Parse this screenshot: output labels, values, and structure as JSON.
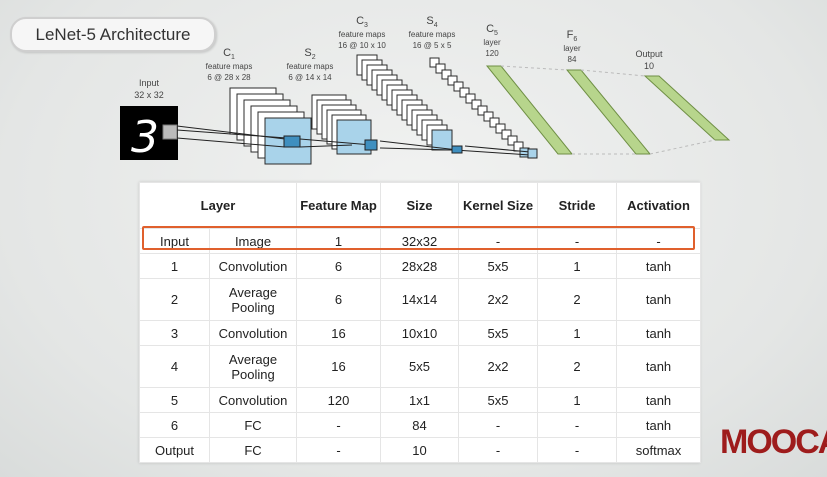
{
  "title": "LeNet-5 Architecture",
  "diagram": {
    "input": {
      "name": "Input",
      "dims": "32 x 32",
      "digit": "3"
    },
    "c1": {
      "name": "C",
      "sub": "1",
      "line1": "feature maps",
      "line2": "6 @ 28 x 28"
    },
    "s2": {
      "name": "S",
      "sub": "2",
      "line1": "feature maps",
      "line2": "6 @ 14 x 14"
    },
    "c3": {
      "name": "C",
      "sub": "3",
      "line1": "feature maps",
      "line2": "16 @ 10 x 10"
    },
    "s4": {
      "name": "S",
      "sub": "4",
      "line1": "feature maps",
      "line2": "16 @ 5 x 5"
    },
    "c5": {
      "name": "C",
      "sub": "5",
      "line1": "layer",
      "line2": "120"
    },
    "f6": {
      "name": "F",
      "sub": "6",
      "line1": "layer",
      "line2": "84"
    },
    "output": {
      "line1": "Output",
      "line2": "10"
    },
    "colors": {
      "map_fill": "#a9d3ea",
      "map_stroke": "#2b2b2b",
      "fc_fill": "#b7d58c",
      "fc_stroke": "#6f8f45"
    }
  },
  "table": {
    "headers": {
      "layer": "Layer",
      "feature_map": "Feature Map",
      "size": "Size",
      "kernel_size": "Kernel Size",
      "stride": "Stride",
      "activation": "Activation"
    },
    "rows": [
      {
        "num": "Input",
        "type": "Image",
        "feature_map": "1",
        "size": "32x32",
        "kernel": "-",
        "stride": "-",
        "activation": "-"
      },
      {
        "num": "1",
        "type": "Convolution",
        "feature_map": "6",
        "size": "28x28",
        "kernel": "5x5",
        "stride": "1",
        "activation": "tanh"
      },
      {
        "num": "2",
        "type": "Average Pooling",
        "feature_map": "6",
        "size": "14x14",
        "kernel": "2x2",
        "stride": "2",
        "activation": "tanh"
      },
      {
        "num": "3",
        "type": "Convolution",
        "feature_map": "16",
        "size": "10x10",
        "kernel": "5x5",
        "stride": "1",
        "activation": "tanh"
      },
      {
        "num": "4",
        "type": "Average Pooling",
        "feature_map": "16",
        "size": "5x5",
        "kernel": "2x2",
        "stride": "2",
        "activation": "tanh"
      },
      {
        "num": "5",
        "type": "Convolution",
        "feature_map": "120",
        "size": "1x1",
        "kernel": "5x5",
        "stride": "1",
        "activation": "tanh"
      },
      {
        "num": "6",
        "type": "FC",
        "feature_map": "-",
        "size": "84",
        "kernel": "-",
        "stride": "-",
        "activation": "tanh"
      },
      {
        "num": "Output",
        "type": "FC",
        "feature_map": "-",
        "size": "10",
        "kernel": "-",
        "stride": "-",
        "activation": "softmax"
      }
    ],
    "highlight_color": "#e0602d"
  },
  "logo": {
    "text": "MOOCA",
    "color": "#9e1c1c"
  }
}
